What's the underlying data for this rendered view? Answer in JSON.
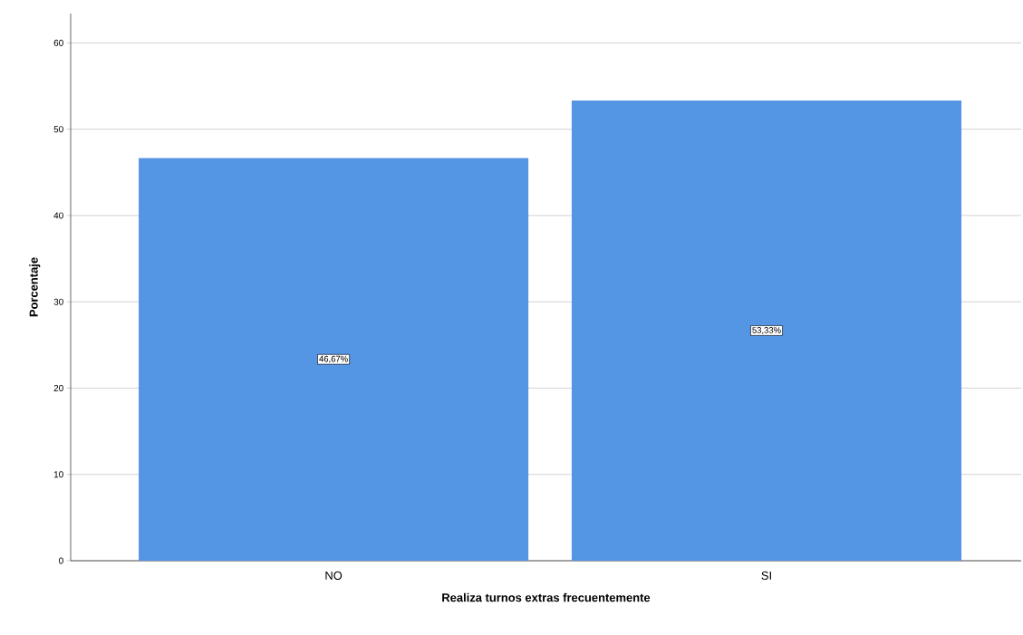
{
  "chart_data": {
    "type": "bar",
    "xlabel": "Realiza turnos extras frecuentemente",
    "ylabel": "Porcentaje",
    "categories": [
      "NO",
      "SI"
    ],
    "values": [
      46.67,
      53.33
    ],
    "value_labels": [
      "46,67%",
      "53,33%"
    ],
    "color": "#5596e4",
    "ylim": [
      0,
      63.4
    ],
    "yticks": [
      0,
      10,
      20,
      30,
      40,
      50,
      60
    ],
    "grid": "y"
  }
}
